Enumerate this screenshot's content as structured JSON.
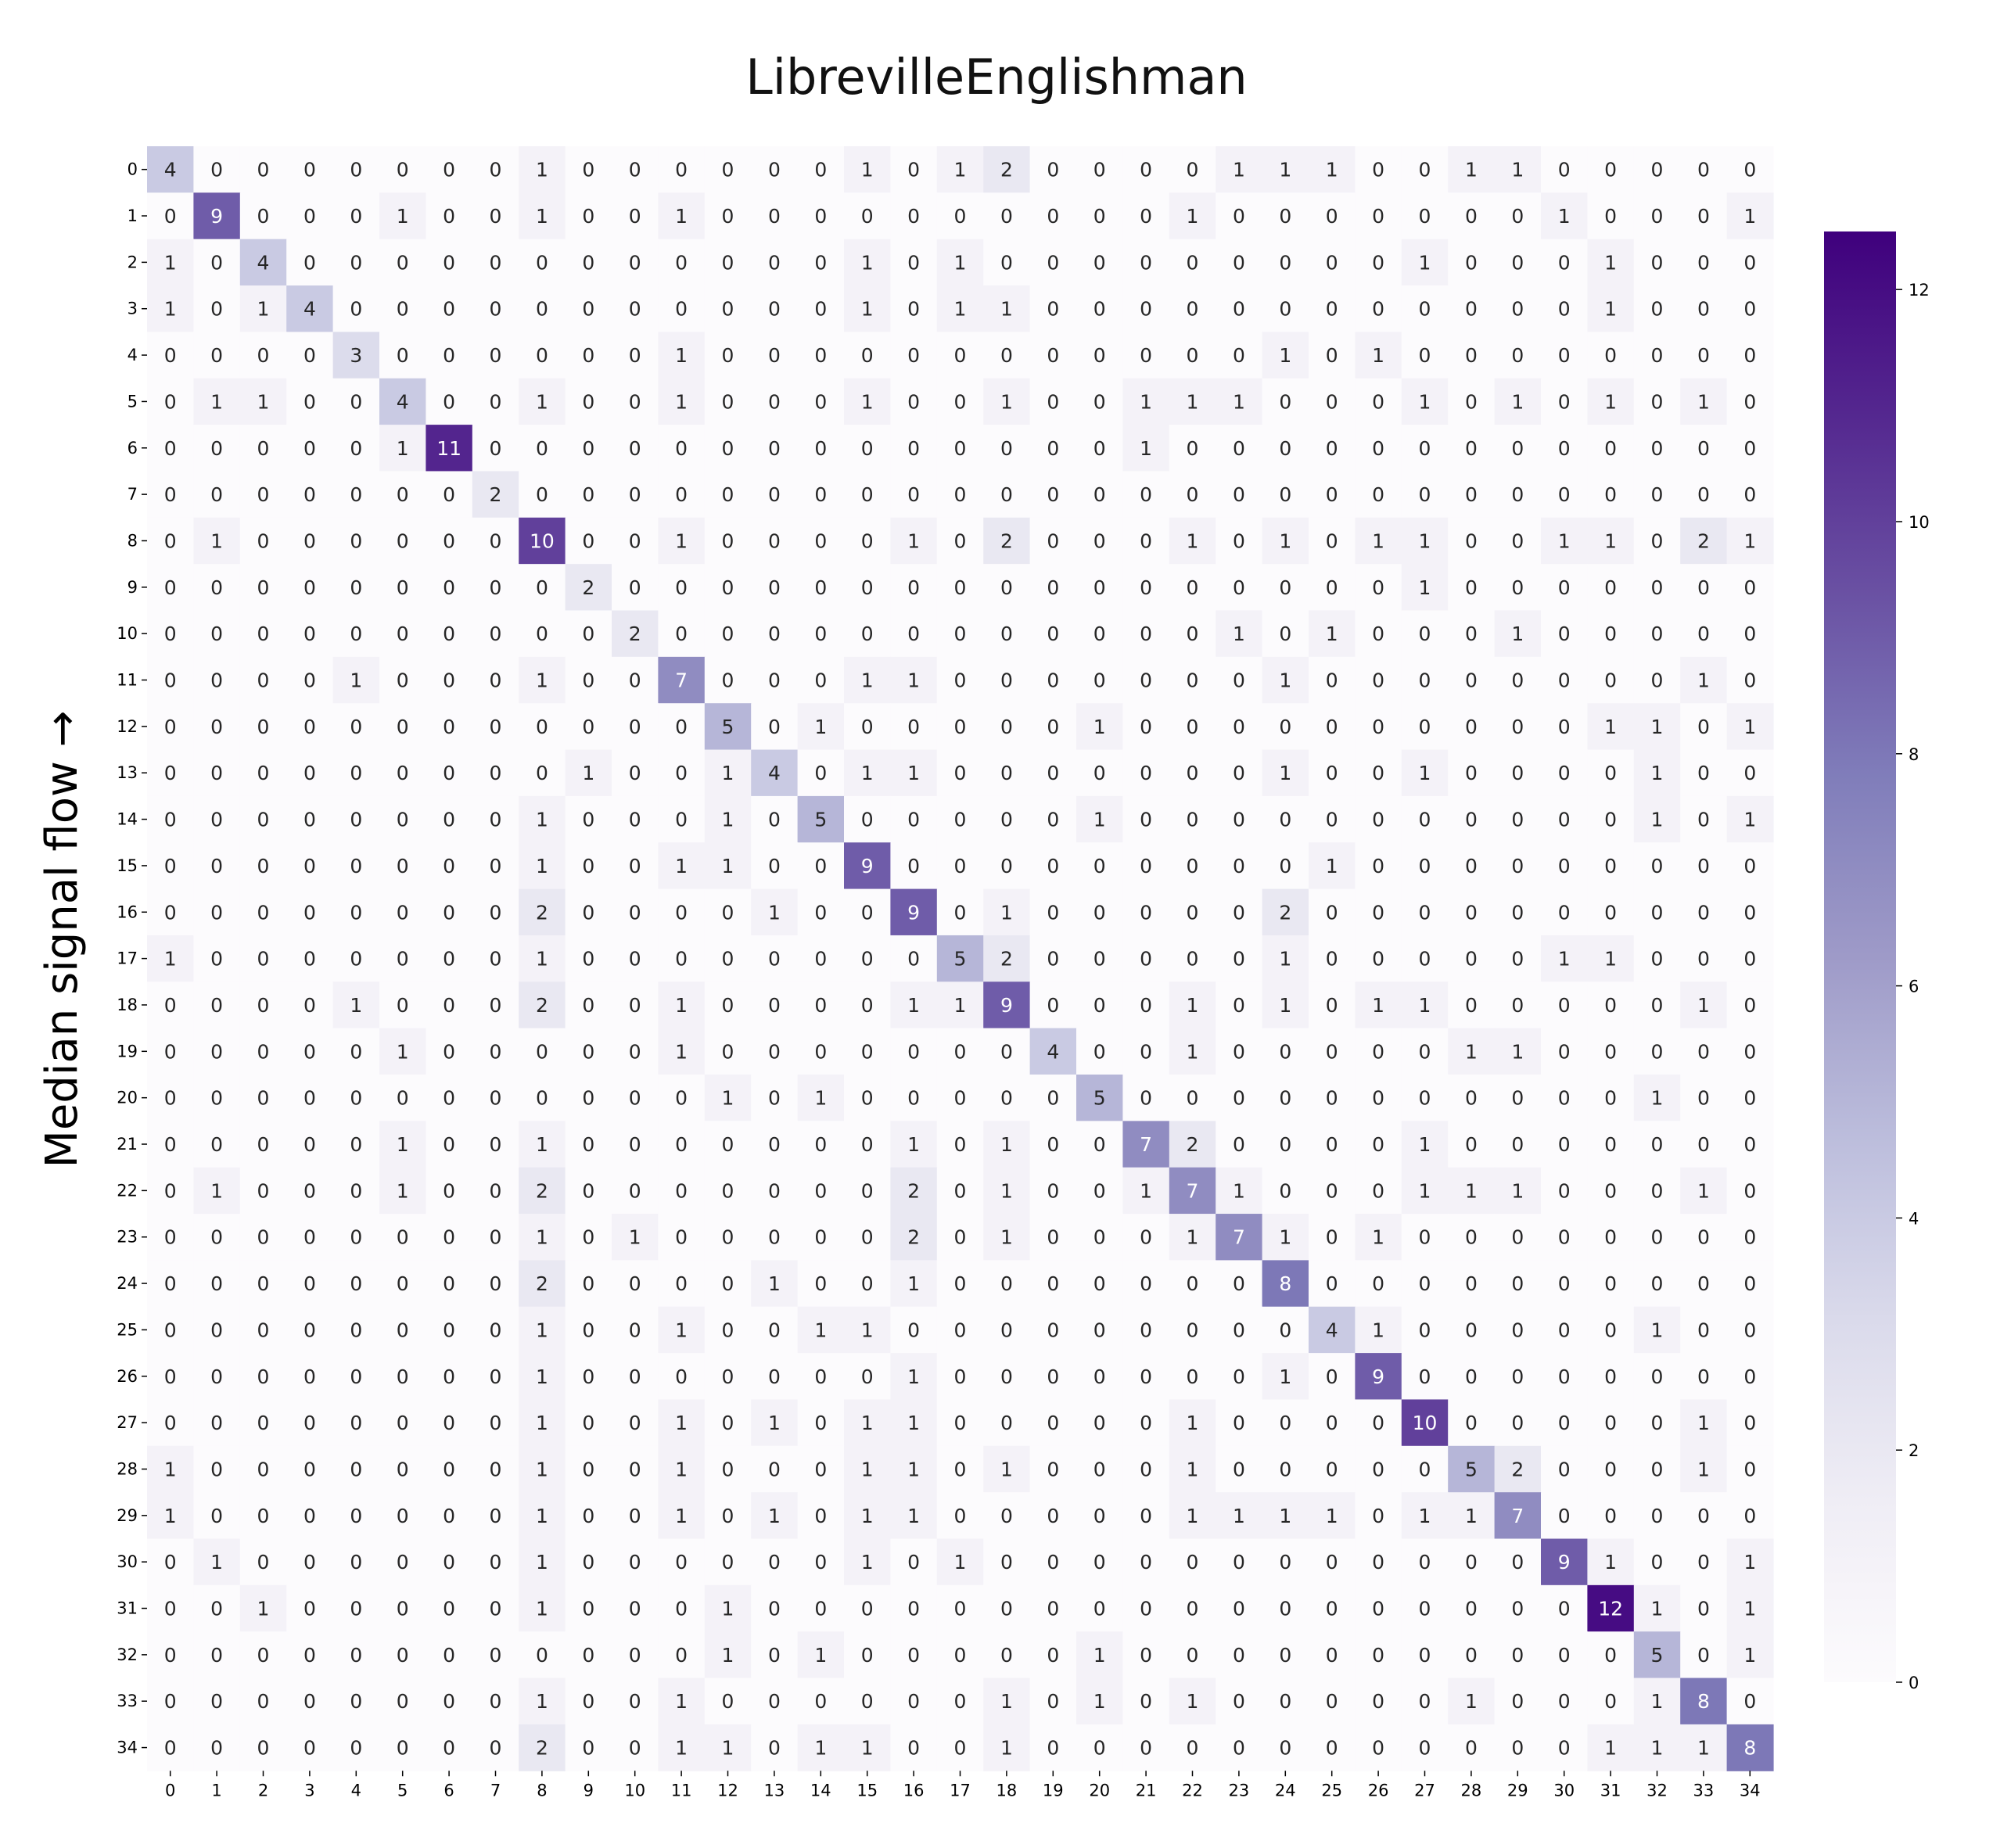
{
  "chart_data": {
    "type": "heatmap",
    "title": "LibrevilleEnglishman",
    "ylabel": "Median signal flow →",
    "xlabel": "",
    "x_labels": [
      "0",
      "1",
      "2",
      "3",
      "4",
      "5",
      "6",
      "7",
      "8",
      "9",
      "10",
      "11",
      "12",
      "13",
      "14",
      "15",
      "16",
      "17",
      "18",
      "19",
      "20",
      "21",
      "22",
      "23",
      "24",
      "25",
      "26",
      "27",
      "28",
      "29",
      "30",
      "31",
      "32",
      "33",
      "34"
    ],
    "y_labels": [
      "0",
      "1",
      "2",
      "3",
      "4",
      "5",
      "6",
      "7",
      "8",
      "9",
      "10",
      "11",
      "12",
      "13",
      "14",
      "15",
      "16",
      "17",
      "18",
      "19",
      "20",
      "21",
      "22",
      "23",
      "24",
      "25",
      "26",
      "27",
      "28",
      "29",
      "30",
      "31",
      "32",
      "33",
      "34"
    ],
    "values": [
      [
        4,
        0,
        0,
        0,
        0,
        0,
        0,
        0,
        1,
        0,
        0,
        0,
        0,
        0,
        0,
        1,
        0,
        1,
        2,
        0,
        0,
        0,
        0,
        1,
        1,
        1,
        0,
        0,
        1,
        1,
        0,
        0,
        0,
        0,
        0
      ],
      [
        0,
        9,
        0,
        0,
        0,
        1,
        0,
        0,
        1,
        0,
        0,
        1,
        0,
        0,
        0,
        0,
        0,
        0,
        0,
        0,
        0,
        0,
        1,
        0,
        0,
        0,
        0,
        0,
        0,
        0,
        1,
        0,
        0,
        0,
        1
      ],
      [
        1,
        0,
        4,
        0,
        0,
        0,
        0,
        0,
        0,
        0,
        0,
        0,
        0,
        0,
        0,
        1,
        0,
        1,
        0,
        0,
        0,
        0,
        0,
        0,
        0,
        0,
        0,
        1,
        0,
        0,
        0,
        1,
        0,
        0,
        0
      ],
      [
        1,
        0,
        1,
        4,
        0,
        0,
        0,
        0,
        0,
        0,
        0,
        0,
        0,
        0,
        0,
        1,
        0,
        1,
        1,
        0,
        0,
        0,
        0,
        0,
        0,
        0,
        0,
        0,
        0,
        0,
        0,
        1,
        0,
        0,
        0
      ],
      [
        0,
        0,
        0,
        0,
        3,
        0,
        0,
        0,
        0,
        0,
        0,
        1,
        0,
        0,
        0,
        0,
        0,
        0,
        0,
        0,
        0,
        0,
        0,
        0,
        1,
        0,
        1,
        0,
        0,
        0,
        0,
        0,
        0,
        0,
        0
      ],
      [
        0,
        1,
        1,
        0,
        0,
        4,
        0,
        0,
        1,
        0,
        0,
        1,
        0,
        0,
        0,
        1,
        0,
        0,
        1,
        0,
        0,
        1,
        1,
        1,
        0,
        0,
        0,
        1,
        0,
        1,
        0,
        1,
        0,
        1,
        0
      ],
      [
        0,
        0,
        0,
        0,
        0,
        1,
        11,
        0,
        0,
        0,
        0,
        0,
        0,
        0,
        0,
        0,
        0,
        0,
        0,
        0,
        0,
        1,
        0,
        0,
        0,
        0,
        0,
        0,
        0,
        0,
        0,
        0,
        0,
        0,
        0
      ],
      [
        0,
        0,
        0,
        0,
        0,
        0,
        0,
        2,
        0,
        0,
        0,
        0,
        0,
        0,
        0,
        0,
        0,
        0,
        0,
        0,
        0,
        0,
        0,
        0,
        0,
        0,
        0,
        0,
        0,
        0,
        0,
        0,
        0,
        0,
        0
      ],
      [
        0,
        1,
        0,
        0,
        0,
        0,
        0,
        0,
        10,
        0,
        0,
        1,
        0,
        0,
        0,
        0,
        1,
        0,
        2,
        0,
        0,
        0,
        1,
        0,
        1,
        0,
        1,
        1,
        0,
        0,
        1,
        1,
        0,
        2,
        1
      ],
      [
        0,
        0,
        0,
        0,
        0,
        0,
        0,
        0,
        0,
        2,
        0,
        0,
        0,
        0,
        0,
        0,
        0,
        0,
        0,
        0,
        0,
        0,
        0,
        0,
        0,
        0,
        0,
        1,
        0,
        0,
        0,
        0,
        0,
        0,
        0
      ],
      [
        0,
        0,
        0,
        0,
        0,
        0,
        0,
        0,
        0,
        0,
        2,
        0,
        0,
        0,
        0,
        0,
        0,
        0,
        0,
        0,
        0,
        0,
        0,
        1,
        0,
        1,
        0,
        0,
        0,
        1,
        0,
        0,
        0,
        0,
        0
      ],
      [
        0,
        0,
        0,
        0,
        1,
        0,
        0,
        0,
        1,
        0,
        0,
        7,
        0,
        0,
        0,
        1,
        1,
        0,
        0,
        0,
        0,
        0,
        0,
        0,
        1,
        0,
        0,
        0,
        0,
        0,
        0,
        0,
        0,
        1,
        0
      ],
      [
        0,
        0,
        0,
        0,
        0,
        0,
        0,
        0,
        0,
        0,
        0,
        0,
        5,
        0,
        1,
        0,
        0,
        0,
        0,
        0,
        1,
        0,
        0,
        0,
        0,
        0,
        0,
        0,
        0,
        0,
        0,
        1,
        1,
        0,
        1
      ],
      [
        0,
        0,
        0,
        0,
        0,
        0,
        0,
        0,
        0,
        1,
        0,
        0,
        1,
        4,
        0,
        1,
        1,
        0,
        0,
        0,
        0,
        0,
        0,
        0,
        1,
        0,
        0,
        1,
        0,
        0,
        0,
        0,
        1,
        0,
        0
      ],
      [
        0,
        0,
        0,
        0,
        0,
        0,
        0,
        0,
        1,
        0,
        0,
        0,
        1,
        0,
        5,
        0,
        0,
        0,
        0,
        0,
        1,
        0,
        0,
        0,
        0,
        0,
        0,
        0,
        0,
        0,
        0,
        0,
        1,
        0,
        1
      ],
      [
        0,
        0,
        0,
        0,
        0,
        0,
        0,
        0,
        1,
        0,
        0,
        1,
        1,
        0,
        0,
        9,
        0,
        0,
        0,
        0,
        0,
        0,
        0,
        0,
        0,
        1,
        0,
        0,
        0,
        0,
        0,
        0,
        0,
        0,
        0
      ],
      [
        0,
        0,
        0,
        0,
        0,
        0,
        0,
        0,
        2,
        0,
        0,
        0,
        0,
        1,
        0,
        0,
        9,
        0,
        1,
        0,
        0,
        0,
        0,
        0,
        2,
        0,
        0,
        0,
        0,
        0,
        0,
        0,
        0,
        0,
        0
      ],
      [
        1,
        0,
        0,
        0,
        0,
        0,
        0,
        0,
        1,
        0,
        0,
        0,
        0,
        0,
        0,
        0,
        0,
        5,
        2,
        0,
        0,
        0,
        0,
        0,
        1,
        0,
        0,
        0,
        0,
        0,
        1,
        1,
        0,
        0,
        0
      ],
      [
        0,
        0,
        0,
        0,
        1,
        0,
        0,
        0,
        2,
        0,
        0,
        1,
        0,
        0,
        0,
        0,
        1,
        1,
        9,
        0,
        0,
        0,
        1,
        0,
        1,
        0,
        1,
        1,
        0,
        0,
        0,
        0,
        0,
        1,
        0
      ],
      [
        0,
        0,
        0,
        0,
        0,
        1,
        0,
        0,
        0,
        0,
        0,
        1,
        0,
        0,
        0,
        0,
        0,
        0,
        0,
        4,
        0,
        0,
        1,
        0,
        0,
        0,
        0,
        0,
        1,
        1,
        0,
        0,
        0,
        0,
        0
      ],
      [
        0,
        0,
        0,
        0,
        0,
        0,
        0,
        0,
        0,
        0,
        0,
        0,
        1,
        0,
        1,
        0,
        0,
        0,
        0,
        0,
        5,
        0,
        0,
        0,
        0,
        0,
        0,
        0,
        0,
        0,
        0,
        0,
        1,
        0,
        0
      ],
      [
        0,
        0,
        0,
        0,
        0,
        1,
        0,
        0,
        1,
        0,
        0,
        0,
        0,
        0,
        0,
        0,
        1,
        0,
        1,
        0,
        0,
        7,
        2,
        0,
        0,
        0,
        0,
        1,
        0,
        0,
        0,
        0,
        0,
        0,
        0
      ],
      [
        0,
        1,
        0,
        0,
        0,
        1,
        0,
        0,
        2,
        0,
        0,
        0,
        0,
        0,
        0,
        0,
        2,
        0,
        1,
        0,
        0,
        1,
        7,
        1,
        0,
        0,
        0,
        1,
        1,
        1,
        0,
        0,
        0,
        1,
        0
      ],
      [
        0,
        0,
        0,
        0,
        0,
        0,
        0,
        0,
        1,
        0,
        1,
        0,
        0,
        0,
        0,
        0,
        2,
        0,
        1,
        0,
        0,
        0,
        1,
        7,
        1,
        0,
        1,
        0,
        0,
        0,
        0,
        0,
        0,
        0,
        0
      ],
      [
        0,
        0,
        0,
        0,
        0,
        0,
        0,
        0,
        2,
        0,
        0,
        0,
        0,
        1,
        0,
        0,
        1,
        0,
        0,
        0,
        0,
        0,
        0,
        0,
        8,
        0,
        0,
        0,
        0,
        0,
        0,
        0,
        0,
        0,
        0
      ],
      [
        0,
        0,
        0,
        0,
        0,
        0,
        0,
        0,
        1,
        0,
        0,
        1,
        0,
        0,
        1,
        1,
        0,
        0,
        0,
        0,
        0,
        0,
        0,
        0,
        0,
        4,
        1,
        0,
        0,
        0,
        0,
        0,
        1,
        0,
        0
      ],
      [
        0,
        0,
        0,
        0,
        0,
        0,
        0,
        0,
        1,
        0,
        0,
        0,
        0,
        0,
        0,
        0,
        1,
        0,
        0,
        0,
        0,
        0,
        0,
        0,
        1,
        0,
        9,
        0,
        0,
        0,
        0,
        0,
        0,
        0,
        0
      ],
      [
        0,
        0,
        0,
        0,
        0,
        0,
        0,
        0,
        1,
        0,
        0,
        1,
        0,
        1,
        0,
        1,
        1,
        0,
        0,
        0,
        0,
        0,
        1,
        0,
        0,
        0,
        0,
        10,
        0,
        0,
        0,
        0,
        0,
        1,
        0
      ],
      [
        1,
        0,
        0,
        0,
        0,
        0,
        0,
        0,
        1,
        0,
        0,
        1,
        0,
        0,
        0,
        1,
        1,
        0,
        1,
        0,
        0,
        0,
        1,
        0,
        0,
        0,
        0,
        0,
        5,
        2,
        0,
        0,
        0,
        1,
        0
      ],
      [
        1,
        0,
        0,
        0,
        0,
        0,
        0,
        0,
        1,
        0,
        0,
        1,
        0,
        1,
        0,
        1,
        1,
        0,
        0,
        0,
        0,
        0,
        1,
        1,
        1,
        1,
        0,
        1,
        1,
        7,
        0,
        0,
        0,
        0,
        0
      ],
      [
        0,
        1,
        0,
        0,
        0,
        0,
        0,
        0,
        1,
        0,
        0,
        0,
        0,
        0,
        0,
        1,
        0,
        1,
        0,
        0,
        0,
        0,
        0,
        0,
        0,
        0,
        0,
        0,
        0,
        0,
        9,
        1,
        0,
        0,
        1
      ],
      [
        0,
        0,
        1,
        0,
        0,
        0,
        0,
        0,
        1,
        0,
        0,
        0,
        1,
        0,
        0,
        0,
        0,
        0,
        0,
        0,
        0,
        0,
        0,
        0,
        0,
        0,
        0,
        0,
        0,
        0,
        0,
        12,
        1,
        0,
        1
      ],
      [
        0,
        0,
        0,
        0,
        0,
        0,
        0,
        0,
        0,
        0,
        0,
        0,
        1,
        0,
        1,
        0,
        0,
        0,
        0,
        0,
        1,
        0,
        0,
        0,
        0,
        0,
        0,
        0,
        0,
        0,
        0,
        0,
        5,
        0,
        1
      ],
      [
        0,
        0,
        0,
        0,
        0,
        0,
        0,
        0,
        1,
        0,
        0,
        1,
        0,
        0,
        0,
        0,
        0,
        0,
        1,
        0,
        1,
        0,
        1,
        0,
        0,
        0,
        0,
        0,
        1,
        0,
        0,
        0,
        1,
        8,
        0
      ],
      [
        0,
        0,
        0,
        0,
        0,
        0,
        0,
        0,
        2,
        0,
        0,
        1,
        1,
        0,
        1,
        1,
        0,
        0,
        1,
        0,
        0,
        0,
        0,
        0,
        0,
        0,
        0,
        0,
        0,
        0,
        0,
        1,
        1,
        1,
        8
      ]
    ],
    "colorbar": {
      "range": [
        0,
        12.5
      ],
      "ticks": [
        0,
        2,
        4,
        6,
        8,
        10,
        12
      ],
      "tick_labels": [
        "0",
        "2",
        "4",
        "6",
        "8",
        "10",
        "12"
      ],
      "colormap": "Purples",
      "color_low": "#fcfbfd",
      "color_high": "#3f007d"
    },
    "grid": false,
    "cell_annotations": true
  }
}
